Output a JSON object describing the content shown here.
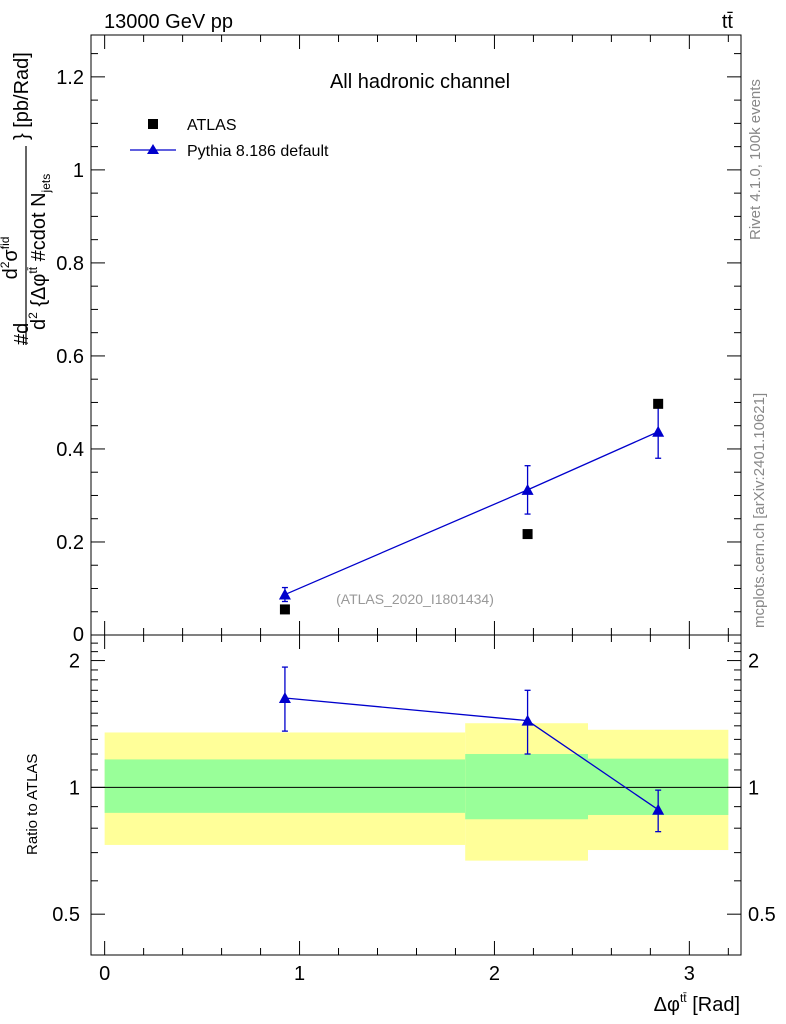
{
  "header": {
    "left_label": "13000 GeV pp",
    "right_label": "tt̄"
  },
  "side_text": {
    "rivet": "Rivet 4.1.0,  100k events",
    "mcplots": "mcplots.cern.ch [arXiv:2401.10621]"
  },
  "colors": {
    "mc_line": "#0000cc",
    "data_marker": "#000000",
    "band_inner": "#99ff99",
    "band_outer": "#ffff99",
    "watermark": "#999999",
    "side_text": "#888888"
  },
  "chart_data": [
    {
      "panel": "main",
      "type": "scatter",
      "title": "All hadronic channel",
      "watermark": "(ATLAS_2020_I1801434)",
      "xlabel": "Δφ^{tt̄} [Rad]",
      "ylabel": "#d d²σ^{fid} / d²{Δφ^{tt̄} #cdot N_jets} [pb/Rad]",
      "ylabel_parts": {
        "prefix": "#d",
        "num_base": "d",
        "num_sup": "2",
        "num_sigma": "σ",
        "num_sigma_sup": "fid",
        "den_base": "d",
        "den_sup": "2",
        "den_mid": " {Δφ",
        "den_phi_sup": "tt̄",
        "den_cdot": " #cdot N",
        "den_sub": "jets",
        "suffix": "} [pb/Rad]"
      },
      "xlim": [
        -0.07,
        3.265
      ],
      "ylim": [
        0,
        1.29
      ],
      "yticks": [
        0.2,
        0.4,
        0.6,
        0.8,
        1.0,
        1.2
      ],
      "ytick_labels": [
        "0.2",
        "0.4",
        "0.6",
        "0.8",
        "1",
        "1.2"
      ],
      "ytick_zero_label": "0",
      "legend_position": "top-left",
      "series": [
        {
          "name": "ATLAS",
          "marker": "square",
          "x": [
            0.925,
            2.17,
            2.84
          ],
          "y": [
            0.055,
            0.217,
            0.497
          ]
        },
        {
          "name": "Pythia 8.186 default",
          "marker": "triangle",
          "x": [
            0.925,
            2.17,
            2.84
          ],
          "y": [
            0.087,
            0.312,
            0.437
          ],
          "err_lo": [
            0.015,
            0.052,
            0.057
          ],
          "err_hi": [
            0.015,
            0.052,
            0.057
          ]
        }
      ]
    },
    {
      "panel": "ratio",
      "type": "line",
      "ylabel": "Ratio to ATLAS",
      "xlim": [
        -0.07,
        3.265
      ],
      "ylim": [
        0.4,
        2.3
      ],
      "ylog": true,
      "yticks": [
        0.5,
        1,
        2
      ],
      "ytick_labels": [
        "0.5",
        "1",
        "2"
      ],
      "xticks": [
        0,
        1,
        2,
        3
      ],
      "xtick_labels": [
        "0",
        "1",
        "2",
        "3"
      ],
      "bands": [
        {
          "x0": 0.0,
          "x1": 1.85,
          "inner_lo": 0.87,
          "inner_hi": 1.165,
          "outer_lo": 0.73,
          "outer_hi": 1.35
        },
        {
          "x0": 1.85,
          "x1": 2.48,
          "inner_lo": 0.84,
          "inner_hi": 1.2,
          "outer_lo": 0.67,
          "outer_hi": 1.42
        },
        {
          "x0": 2.48,
          "x1": 3.2,
          "inner_lo": 0.86,
          "inner_hi": 1.17,
          "outer_lo": 0.71,
          "outer_hi": 1.37
        }
      ],
      "series": [
        {
          "name": "Pythia 8.186 default / ATLAS",
          "marker": "triangle",
          "x": [
            0.925,
            2.17,
            2.84
          ],
          "y": [
            1.63,
            1.44,
            0.885
          ],
          "err_lo": [
            0.27,
            0.24,
            0.1
          ],
          "err_hi": [
            0.3,
            0.26,
            0.1
          ]
        }
      ]
    }
  ]
}
